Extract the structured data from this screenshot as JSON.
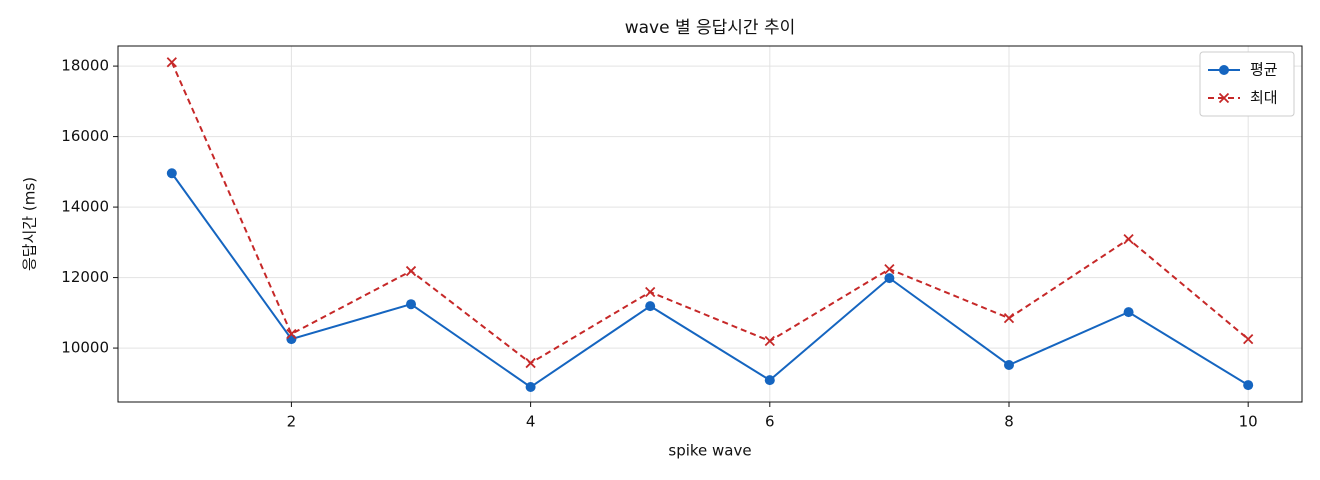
{
  "chart_data": {
    "type": "line",
    "title": "wave 별 응답시간 추이",
    "x_label": "spike wave",
    "y_label": "응답시간 (ms)",
    "x": [
      1,
      2,
      3,
      4,
      5,
      6,
      7,
      8,
      9,
      10
    ],
    "series": [
      {
        "name": "평균",
        "color": "#1565c0",
        "marker": "o",
        "dash": "solid",
        "values": [
          14960,
          10255,
          11245,
          8895,
          11190,
          9090,
          11985,
          9520,
          11020,
          8950
        ]
      },
      {
        "name": "최대",
        "color": "#c62828",
        "marker": "x",
        "dash": "dashed",
        "values": [
          18110,
          10400,
          12185,
          9575,
          11590,
          10200,
          12240,
          10850,
          13090,
          10255
        ]
      }
    ],
    "xlim": [
      0.55,
      10.45
    ],
    "ylim": [
      8470,
      18570
    ],
    "xticks": [
      2,
      4,
      6,
      8,
      10
    ],
    "yticks": [
      10000,
      12000,
      14000,
      16000,
      18000
    ],
    "grid": true,
    "legend": "upper right"
  }
}
